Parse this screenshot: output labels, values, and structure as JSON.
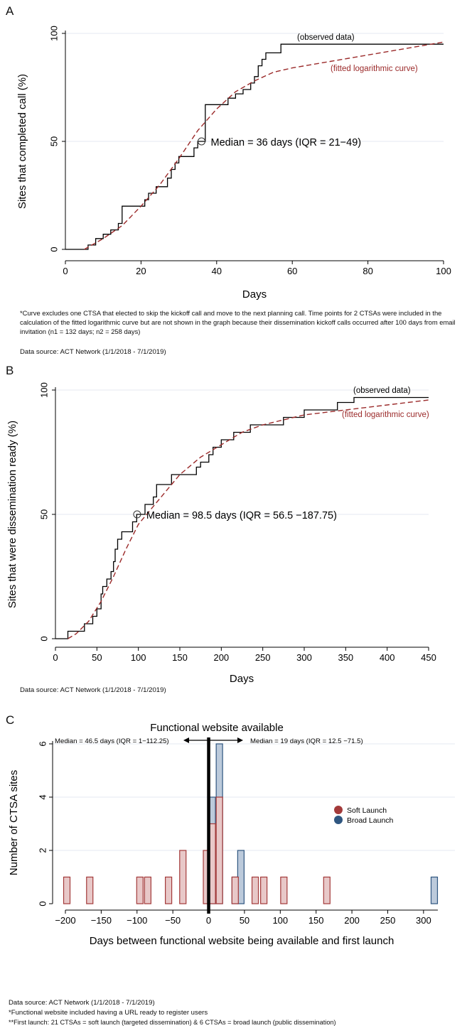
{
  "chart_data": [
    {
      "type": "line",
      "panel_label": "A",
      "ylabel": "Sites that completed call (%)",
      "xlabel": "Days",
      "xlim": [
        0,
        100
      ],
      "ylim": [
        0,
        100
      ],
      "x_ticks": [
        0,
        20,
        40,
        60,
        80,
        100
      ],
      "y_ticks": [
        0,
        50,
        100
      ],
      "grid": "horizontal",
      "series": [
        {
          "name": "(observed data)",
          "style": "step",
          "color": "#000000",
          "points": [
            [
              0,
              0
            ],
            [
              6,
              0
            ],
            [
              6,
              2
            ],
            [
              8,
              2
            ],
            [
              8,
              5
            ],
            [
              10,
              5
            ],
            [
              10,
              7
            ],
            [
              12,
              7
            ],
            [
              12,
              9
            ],
            [
              14,
              9
            ],
            [
              14,
              12
            ],
            [
              15,
              12
            ],
            [
              15,
              20
            ],
            [
              21,
              20
            ],
            [
              21,
              23
            ],
            [
              22,
              23
            ],
            [
              22,
              26
            ],
            [
              24,
              26
            ],
            [
              24,
              29
            ],
            [
              27,
              29
            ],
            [
              27,
              33
            ],
            [
              28,
              33
            ],
            [
              28,
              37
            ],
            [
              29,
              37
            ],
            [
              29,
              40
            ],
            [
              30,
              40
            ],
            [
              30,
              43
            ],
            [
              34,
              43
            ],
            [
              34,
              47
            ],
            [
              35,
              47
            ],
            [
              35,
              50
            ],
            [
              37,
              50
            ],
            [
              37,
              67
            ],
            [
              43,
              67
            ],
            [
              43,
              70
            ],
            [
              45,
              70
            ],
            [
              45,
              72
            ],
            [
              47,
              72
            ],
            [
              47,
              74
            ],
            [
              49,
              74
            ],
            [
              49,
              77
            ],
            [
              50,
              77
            ],
            [
              50,
              80
            ],
            [
              51,
              80
            ],
            [
              51,
              85
            ],
            [
              52,
              85
            ],
            [
              52,
              88
            ],
            [
              53,
              88
            ],
            [
              53,
              91
            ],
            [
              57,
              91
            ],
            [
              57,
              95
            ],
            [
              100,
              95
            ]
          ]
        },
        {
          "name": "(fitted logarithmic curve)",
          "style": "dashed",
          "color": "#9b2a2a",
          "points": [
            [
              5,
              0
            ],
            [
              10,
              5
            ],
            [
              15,
              11
            ],
            [
              20,
              20
            ],
            [
              25,
              30
            ],
            [
              30,
              42
            ],
            [
              35,
              55
            ],
            [
              40,
              65
            ],
            [
              45,
              73
            ],
            [
              50,
              78
            ],
            [
              55,
              82
            ],
            [
              60,
              84
            ],
            [
              70,
              87
            ],
            [
              80,
              90
            ],
            [
              90,
              93
            ],
            [
              100,
              96
            ]
          ]
        }
      ],
      "annotation": "Median = 36 days (IQR = 21−49)",
      "median_marker": [
        36,
        50
      ]
    },
    {
      "type": "line",
      "panel_label": "B",
      "ylabel": "Sites that were dissemination ready (%)",
      "xlabel": "Days",
      "xlim": [
        0,
        450
      ],
      "ylim": [
        0,
        100
      ],
      "x_ticks": [
        0,
        50,
        100,
        150,
        200,
        250,
        300,
        350,
        400,
        450
      ],
      "y_ticks": [
        0,
        50,
        100
      ],
      "grid": "horizontal",
      "series": [
        {
          "name": "(observed data)",
          "style": "step",
          "color": "#000000",
          "points": [
            [
              0,
              0
            ],
            [
              15,
              0
            ],
            [
              15,
              3
            ],
            [
              35,
              3
            ],
            [
              35,
              6
            ],
            [
              45,
              6
            ],
            [
              45,
              9
            ],
            [
              50,
              9
            ],
            [
              50,
              12
            ],
            [
              55,
              12
            ],
            [
              55,
              18
            ],
            [
              57,
              18
            ],
            [
              57,
              21
            ],
            [
              62,
              21
            ],
            [
              62,
              24
            ],
            [
              67,
              24
            ],
            [
              67,
              27
            ],
            [
              70,
              27
            ],
            [
              70,
              31
            ],
            [
              72,
              31
            ],
            [
              72,
              36
            ],
            [
              75,
              36
            ],
            [
              75,
              40
            ],
            [
              80,
              40
            ],
            [
              80,
              43
            ],
            [
              93,
              43
            ],
            [
              93,
              47
            ],
            [
              98,
              47
            ],
            [
              98,
              50
            ],
            [
              108,
              50
            ],
            [
              108,
              54
            ],
            [
              118,
              54
            ],
            [
              118,
              57
            ],
            [
              122,
              57
            ],
            [
              122,
              62
            ],
            [
              140,
              62
            ],
            [
              140,
              66
            ],
            [
              170,
              66
            ],
            [
              170,
              69
            ],
            [
              175,
              69
            ],
            [
              175,
              71
            ],
            [
              185,
              71
            ],
            [
              185,
              74
            ],
            [
              190,
              74
            ],
            [
              190,
              77
            ],
            [
              200,
              77
            ],
            [
              200,
              80
            ],
            [
              215,
              80
            ],
            [
              215,
              83
            ],
            [
              235,
              83
            ],
            [
              235,
              86
            ],
            [
              275,
              86
            ],
            [
              275,
              89
            ],
            [
              300,
              89
            ],
            [
              300,
              92
            ],
            [
              340,
              92
            ],
            [
              340,
              95
            ],
            [
              360,
              95
            ],
            [
              360,
              97
            ],
            [
              450,
              97
            ]
          ]
        },
        {
          "name": "(fitted logarithmic curve)",
          "style": "dashed",
          "color": "#9b2a2a",
          "points": [
            [
              15,
              0
            ],
            [
              25,
              2
            ],
            [
              40,
              7
            ],
            [
              55,
              15
            ],
            [
              70,
              25
            ],
            [
              85,
              36
            ],
            [
              100,
              46
            ],
            [
              125,
              56
            ],
            [
              150,
              66
            ],
            [
              175,
              73
            ],
            [
              200,
              78
            ],
            [
              225,
              83
            ],
            [
              250,
              86
            ],
            [
              275,
              88
            ],
            [
              300,
              90
            ],
            [
              350,
              92
            ],
            [
              400,
              94
            ],
            [
              450,
              96
            ]
          ]
        }
      ],
      "annotation": "Median = 98.5 days (IQR = 56.5 −187.75)",
      "median_marker": [
        98.5,
        50
      ]
    },
    {
      "type": "bar",
      "panel_label": "C",
      "title": "Functional website available",
      "ylabel": "Number of CTSA sites",
      "xlabel": "Days between functional website being available and first launch",
      "xlim": [
        -210,
        320
      ],
      "ylim": [
        0,
        6
      ],
      "x_ticks": [
        -200,
        -150,
        -100,
        -50,
        0,
        50,
        100,
        150,
        200,
        250,
        300
      ],
      "y_ticks": [
        0,
        2,
        4,
        6
      ],
      "grid": "horizontal",
      "legend_position": "right",
      "left_annotation": "Median = 46.5 days (IQR = 1−112.25)",
      "right_annotation": "Median = 19 days (IQR = 12.5 −71.5)",
      "series": [
        {
          "name": "Soft Launch",
          "color": "#a33a3a",
          "bars": [
            [
              -198,
              1
            ],
            [
              -166,
              1
            ],
            [
              -96,
              1
            ],
            [
              -85,
              1
            ],
            [
              -56,
              1
            ],
            [
              -36,
              2
            ],
            [
              -3,
              2
            ],
            [
              5,
              3
            ],
            [
              15,
              4
            ],
            [
              37,
              1
            ],
            [
              65,
              1
            ],
            [
              77,
              1
            ],
            [
              105,
              1
            ],
            [
              165,
              1
            ]
          ]
        },
        {
          "name": "Broad Launch",
          "color": "#2f5680",
          "bars": [
            [
              5,
              4
            ],
            [
              15,
              6
            ],
            [
              37,
              1
            ],
            [
              45,
              2
            ],
            [
              315,
              1
            ]
          ]
        }
      ]
    }
  ],
  "notes": {
    "a_footnote": "*Curve excludes one CTSA that elected to skip the kickoff call and move to the next planning call. Time points for 2 CTSAs were included in the calculation of the fitted logarithmic curve but are not shown in the graph because their dissemination kickoff calls occurred after 100 days from email invitation (n1 = 132 days; n2 = 258 days)",
    "a_source": "Data source: ACT Network (1/1/2018 - 7/1/2019)",
    "b_source": "Data source: ACT Network (1/1/2018 - 7/1/2019)",
    "c_source": "Data source: ACT Network (1/1/2018 - 7/1/2019)",
    "c_note1": "*Functional website included having a URL ready to register users",
    "c_note2": "**First launch: 21 CTSAs = soft launch (targeted dissemination) & 6 CTSAs = broad launch (public dissemination)"
  },
  "colors": {
    "observed": "#000000",
    "fitted": "#9b2a2a",
    "soft_fill": "#e8c8c8",
    "soft_stroke": "#a33a3a",
    "broad_fill": "#bccadb",
    "broad_stroke": "#2f5680",
    "grid": "#e5eaf0"
  }
}
